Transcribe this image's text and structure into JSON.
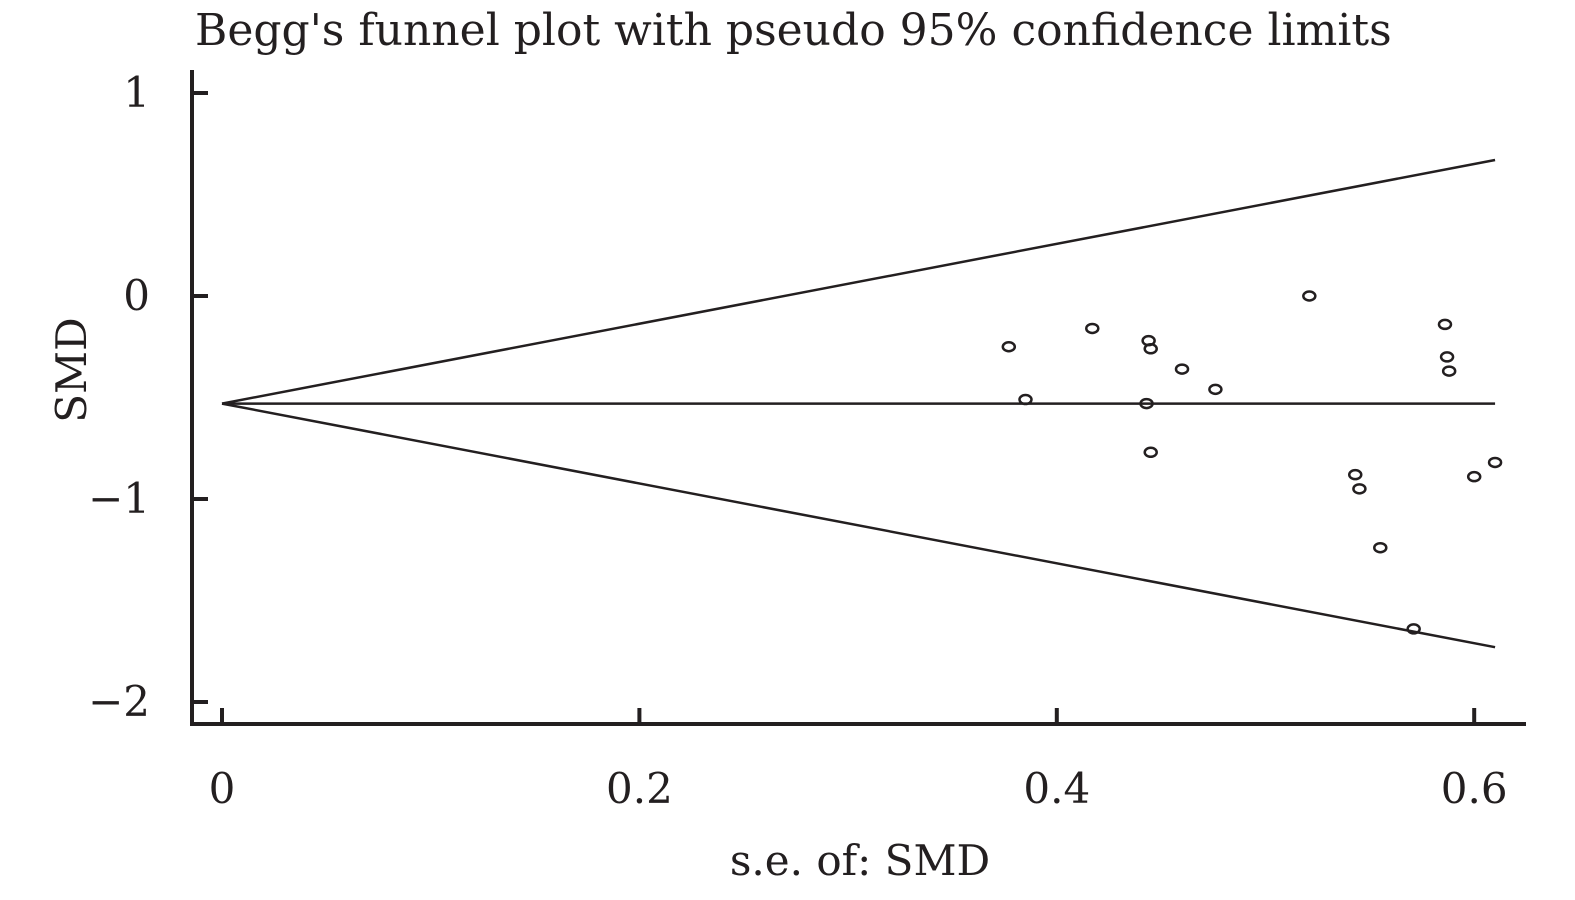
{
  "chart_data": {
    "type": "scatter",
    "title": "Begg's funnel plot with pseudo 95% confidence limits",
    "xlabel": "s.e. of: SMD",
    "ylabel": "SMD",
    "xlim": [
      -0.008,
      0.63
    ],
    "ylim": [
      -2.1,
      1.08
    ],
    "x_ticks": [
      0,
      0.2,
      0.4,
      0.6
    ],
    "x_tick_labels": [
      "0",
      "0.2",
      "0.4",
      "0.6"
    ],
    "y_ticks": [
      -2,
      -1,
      0,
      1
    ],
    "y_tick_labels": [
      "−2",
      "−1",
      "0",
      "1"
    ],
    "pooled_estimate": -0.53,
    "pseudo_limits": {
      "upper": [
        [
          0,
          -0.53
        ],
        [
          0.61,
          0.67
        ]
      ],
      "lower": [
        [
          0,
          -0.53
        ],
        [
          0.61,
          -1.73
        ]
      ]
    },
    "points": [
      {
        "x": 0.377,
        "y": -0.25
      },
      {
        "x": 0.385,
        "y": -0.51
      },
      {
        "x": 0.417,
        "y": -0.16
      },
      {
        "x": 0.444,
        "y": -0.22
      },
      {
        "x": 0.445,
        "y": -0.26
      },
      {
        "x": 0.443,
        "y": -0.53
      },
      {
        "x": 0.445,
        "y": -0.77
      },
      {
        "x": 0.46,
        "y": -0.36
      },
      {
        "x": 0.476,
        "y": -0.46
      },
      {
        "x": 0.521,
        "y": 0.0
      },
      {
        "x": 0.543,
        "y": -0.88
      },
      {
        "x": 0.545,
        "y": -0.95
      },
      {
        "x": 0.555,
        "y": -1.24
      },
      {
        "x": 0.571,
        "y": -1.64
      },
      {
        "x": 0.586,
        "y": -0.14
      },
      {
        "x": 0.587,
        "y": -0.3
      },
      {
        "x": 0.588,
        "y": -0.37
      },
      {
        "x": 0.6,
        "y": -0.89
      },
      {
        "x": 0.61,
        "y": -0.82
      }
    ],
    "grid": false,
    "legend": "none"
  }
}
